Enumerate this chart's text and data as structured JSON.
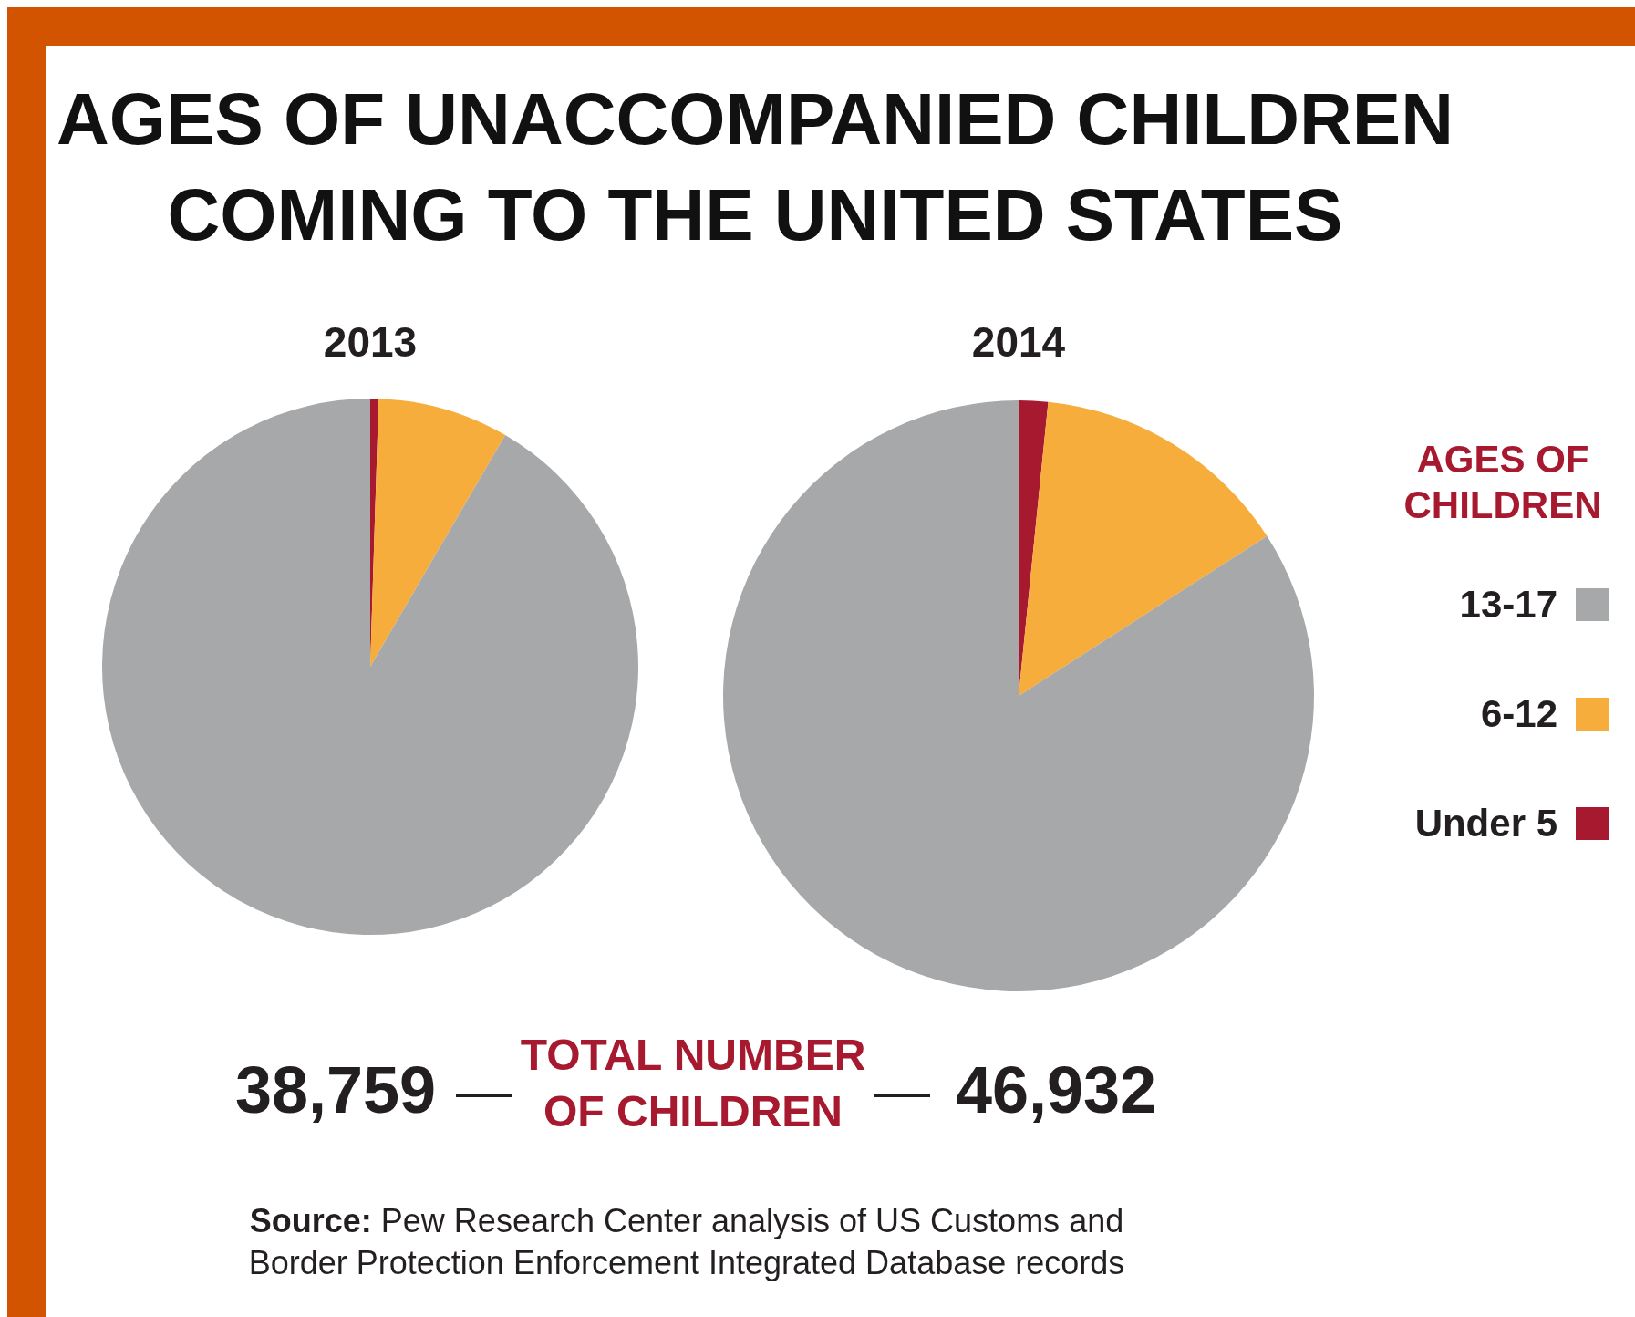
{
  "chart_data": [
    {
      "type": "pie",
      "title": "AGES OF UNACCOMPANIED CHILDREN COMING TO THE UNITED STATES",
      "subtitle": "2013",
      "categories": [
        "Under 5",
        "6-12",
        "13-17"
      ],
      "values": [
        0.5,
        7.9,
        91.6
      ],
      "colors": [
        "#a6192e",
        "#f6ad3c",
        "#a7a8aa"
      ],
      "legend": "right",
      "legend_title": "AGES OF CHILDREN",
      "annotations": [
        "38,759",
        "TOTAL NUMBER OF CHILDREN",
        "Source: Pew Research Center analysis of US Customs and Border Protection Enforcement Integrated Database records"
      ]
    },
    {
      "type": "pie",
      "title": "2014",
      "categories": [
        null,
        null,
        null
      ],
      "values": [
        1.6,
        14.3,
        84.1
      ],
      "colors": [
        "#a6192e",
        "#f6ad3c",
        "#a7a8aa"
      ],
      "annotations": [
        "46,932"
      ]
    }
  ]
}
